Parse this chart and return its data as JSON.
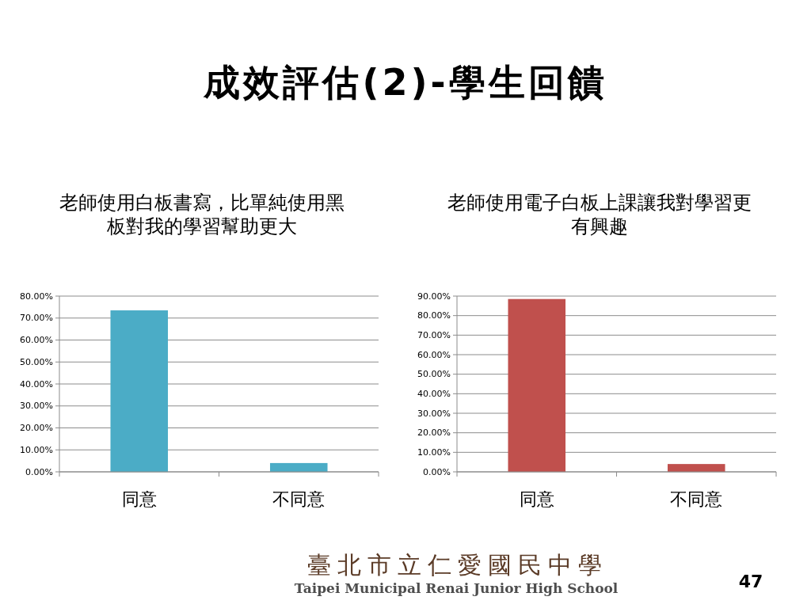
{
  "chart_data": [
    {
      "type": "other",
      "title": "成效評估(2)-學生回饋",
      "annotations": [
        "臺北市立仁愛國民中學",
        "Taipei Municipal Renai Junior High School",
        "47"
      ]
    },
    {
      "type": "bar",
      "title": "老師使用白板書寫，比單純使用黑板對我的學習幫助更大",
      "categories": [
        "同意",
        "不同意"
      ],
      "values": [
        73.5,
        4
      ],
      "color": "#4bacc6",
      "ylim": [
        0,
        80
      ],
      "yticks": [
        {
          "value": 0,
          "label": "0.00%"
        },
        {
          "value": 10,
          "label": "10.00%"
        },
        {
          "value": 20,
          "label": "20.00%"
        },
        {
          "value": 30,
          "label": "30.00%"
        },
        {
          "value": 40,
          "label": "40.00%"
        },
        {
          "value": 50,
          "label": "50.00%"
        },
        {
          "value": 60,
          "label": "60.00%"
        },
        {
          "value": 70,
          "label": "70.00%"
        },
        {
          "value": 80,
          "label": "80.00%"
        }
      ],
      "grid": "y"
    },
    {
      "type": "bar",
      "title": "老師使用電子白板上課讓我對學習更有興趣",
      "categories": [
        "同意",
        "不同意"
      ],
      "values": [
        88.5,
        4
      ],
      "color": "#c0504d",
      "ylim": [
        0,
        90
      ],
      "yticks": [
        {
          "value": 0,
          "label": "0.00%"
        },
        {
          "value": 10,
          "label": "10.00%"
        },
        {
          "value": 20,
          "label": "20.00%"
        },
        {
          "value": 30,
          "label": "30.00%"
        },
        {
          "value": 40,
          "label": "40.00%"
        },
        {
          "value": 50,
          "label": "50.00%"
        },
        {
          "value": 60,
          "label": "60.00%"
        },
        {
          "value": 70,
          "label": "70.00%"
        },
        {
          "value": 80,
          "label": "80.00%"
        },
        {
          "value": 90,
          "label": "90.00%"
        }
      ],
      "grid": "y"
    }
  ]
}
